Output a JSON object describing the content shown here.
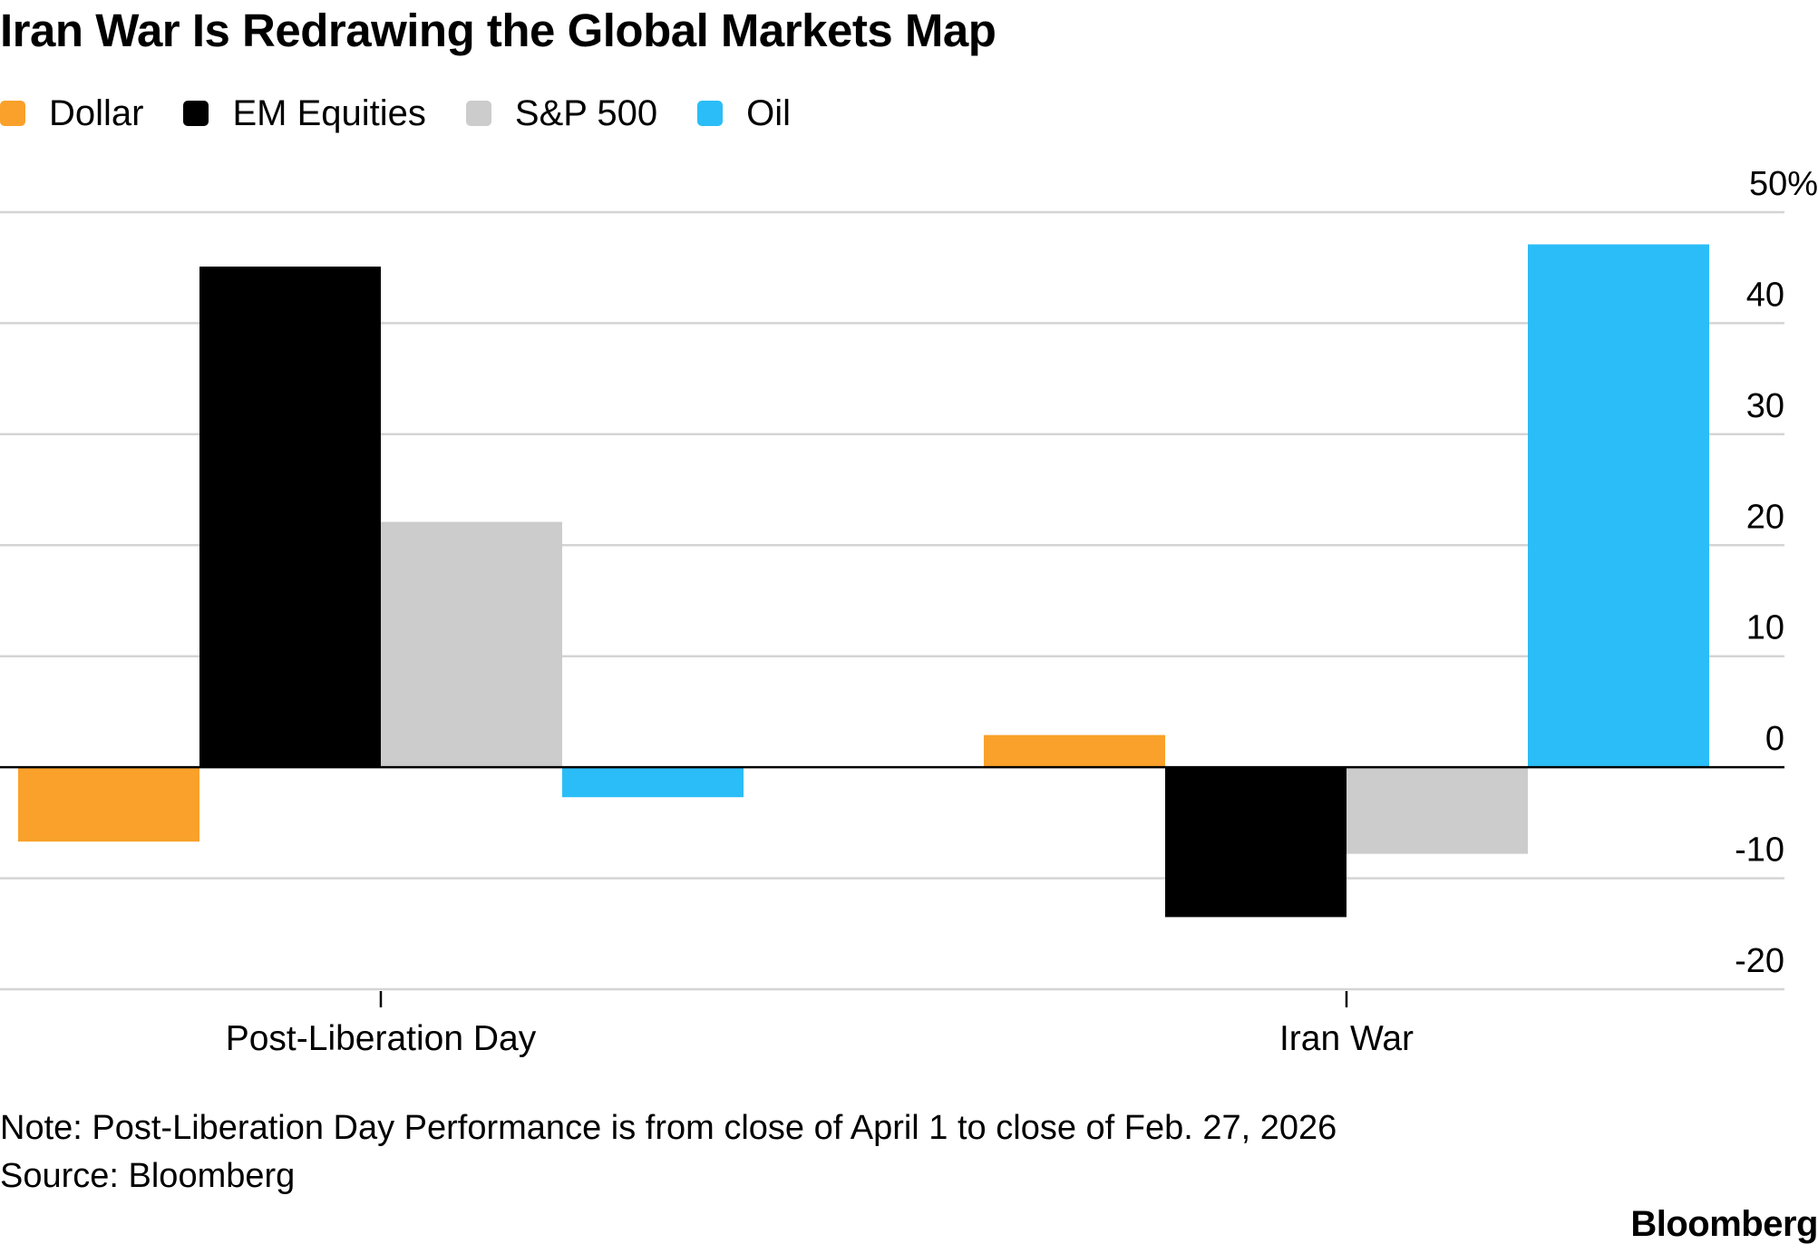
{
  "title": "Iran War Is Redrawing the Global Markets Map",
  "legend": [
    {
      "label": "Dollar",
      "color": "#f9a12a"
    },
    {
      "label": "EM Equities",
      "color": "#000000"
    },
    {
      "label": "S&P 500",
      "color": "#cccccc"
    },
    {
      "label": "Oil",
      "color": "#2bbdf7"
    }
  ],
  "chart_data": {
    "type": "bar",
    "title": "Iran War Is Redrawing the Global Markets Map",
    "categories": [
      "Post-Liberation Day",
      "Iran War"
    ],
    "series": [
      {
        "name": "Dollar",
        "color": "#f9a12a",
        "values": [
          -6.7,
          2.9
        ]
      },
      {
        "name": "EM Equities",
        "color": "#000000",
        "values": [
          45.1,
          -13.5
        ]
      },
      {
        "name": "S&P 500",
        "color": "#cccccc",
        "values": [
          22.1,
          -7.8
        ]
      },
      {
        "name": "Oil",
        "color": "#2bbdf7",
        "values": [
          -2.7,
          47.1
        ]
      }
    ],
    "ylim": [
      -20,
      50
    ],
    "yticks": [
      50,
      40,
      30,
      20,
      10,
      0,
      -10,
      -20
    ],
    "ytick_labels": [
      "50%",
      "40",
      "30",
      "20",
      "10",
      "0",
      "-10",
      "-20"
    ],
    "xlabel": "",
    "ylabel": "",
    "grid": true
  },
  "footer": {
    "note": "Note: Post-Liberation Day Performance is from close of April 1 to close of Feb. 27, 2026",
    "source": "Source: Bloomberg",
    "brand": "Bloomberg"
  }
}
